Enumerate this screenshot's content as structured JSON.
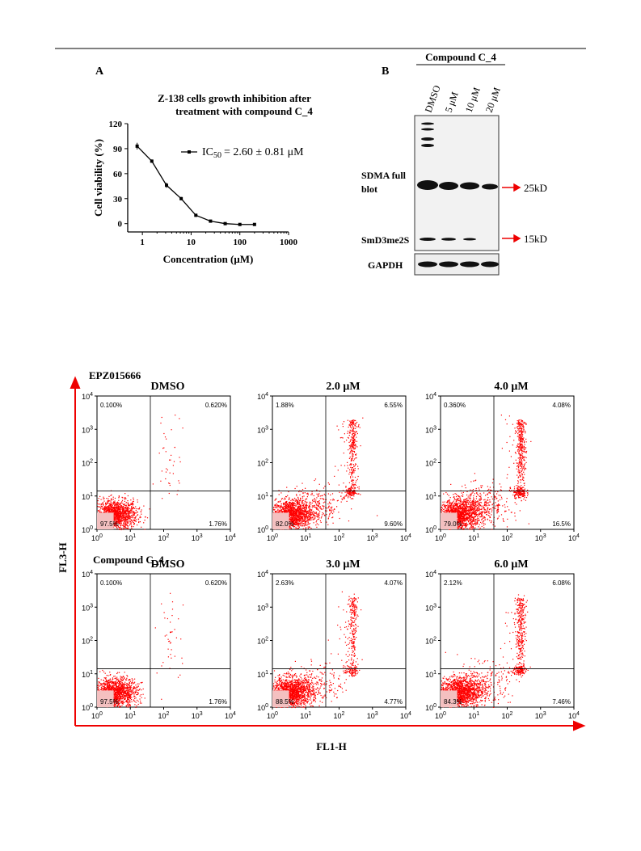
{
  "panel_labels": [
    "A",
    "B"
  ],
  "chart_data": {
    "type": "line",
    "title": [
      "Z-138 cells growth inhibition after",
      "treatment with compound C_4"
    ],
    "x_label": "Concentration (μM)",
    "y_label": "Cell viability (%)",
    "x": [
      0.78,
      1.56,
      3.13,
      6.25,
      12.5,
      25,
      50,
      100,
      200
    ],
    "series": [
      {
        "color": "#000000",
        "values": [
          93,
          75,
          46,
          30,
          10,
          3,
          0,
          -1,
          -1
        ],
        "errors": [
          4,
          2,
          3,
          2,
          1,
          1,
          1,
          1,
          1
        ]
      }
    ],
    "legend": [
      "IC",
      "50",
      "= 2.60 ± 0.81 μM"
    ],
    "log_x": true,
    "xlim": [
      0.5,
      1000
    ],
    "ylim": [
      -10,
      120
    ],
    "xticks": [
      1,
      10,
      100,
      1000
    ],
    "yticks": [
      0,
      30,
      60,
      90,
      120
    ]
  },
  "blot": {
    "header": "Compound C_4",
    "lanes": [
      "DMSO",
      "5 μM",
      "10 μM",
      "20 μM"
    ],
    "row_labels": [
      "SDMA full",
      "blot",
      "SmD3me2S",
      "GAPDH"
    ],
    "markers": [
      "25kD",
      "15kD"
    ]
  },
  "flow": {
    "group_labels": [
      "EPZ015666",
      "Compound C_4"
    ],
    "x_label": "FL1-H",
    "y_label": "FL3-H",
    "tick_base": "10",
    "tick_exponents": [
      0,
      1,
      2,
      3,
      4
    ],
    "plots": [
      {
        "title": "DMSO",
        "quadrants": [
          "0.100%",
          "0.620%",
          "97.5%",
          "1.76%"
        ]
      },
      {
        "title": "2.0 μM",
        "quadrants": [
          "1.88%",
          "6.55%",
          "82.0%",
          "9.60%"
        ]
      },
      {
        "title": "4.0 μM",
        "quadrants": [
          "0.360%",
          "4.08%",
          "79.0%",
          "16.5%"
        ]
      },
      {
        "title": "DMSO",
        "quadrants": [
          "0.100%",
          "0.620%",
          "97.5%",
          "1.76%"
        ]
      },
      {
        "title": "3.0 μM",
        "quadrants": [
          "2.63%",
          "4.07%",
          "88.5%",
          "4.77%"
        ]
      },
      {
        "title": "6.0 μM",
        "quadrants": [
          "2.12%",
          "6.08%",
          "84.3%",
          "7.46%"
        ]
      }
    ]
  }
}
